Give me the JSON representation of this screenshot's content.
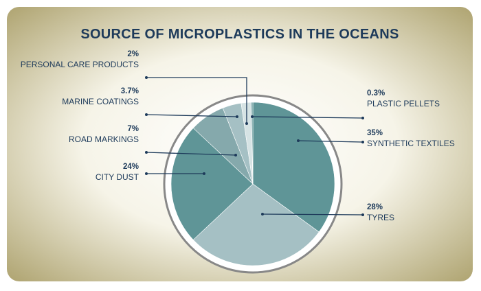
{
  "chart_data": {
    "type": "pie",
    "title": "SOURCE OF MICROPLASTICS IN THE OCEANS",
    "slices": [
      {
        "label": "SYNTHETIC TEXTILES",
        "value": 35,
        "value_label": "35%",
        "color": "#5f9597"
      },
      {
        "label": "TYRES",
        "value": 28,
        "value_label": "28%",
        "color": "#a5c0c4"
      },
      {
        "label": "CITY DUST",
        "value": 24,
        "value_label": "24%",
        "color": "#5f9597"
      },
      {
        "label": "ROAD MARKINGS",
        "value": 7,
        "value_label": "7%",
        "color": "#85a9ac"
      },
      {
        "label": "MARINE COATINGS",
        "value": 3.7,
        "value_label": "3.7%",
        "color": "#a5c0c4"
      },
      {
        "label": "PERSONAL CARE PRODUCTS",
        "value": 2,
        "value_label": "2%",
        "color": "#d6e3e4"
      },
      {
        "label": "PLASTIC PELLETS",
        "value": 0.3,
        "value_label": "0.3%",
        "color": "#5f9597"
      }
    ],
    "start_angle": "12 o'clock",
    "direction": "clockwise"
  },
  "colors": {
    "title": "#1d3a5a",
    "label": "#1d3a5a",
    "leader": "#1d3a5a",
    "ring": "#888888",
    "panel_light": "#fbfbf6",
    "panel_dark": "#a69a62"
  }
}
